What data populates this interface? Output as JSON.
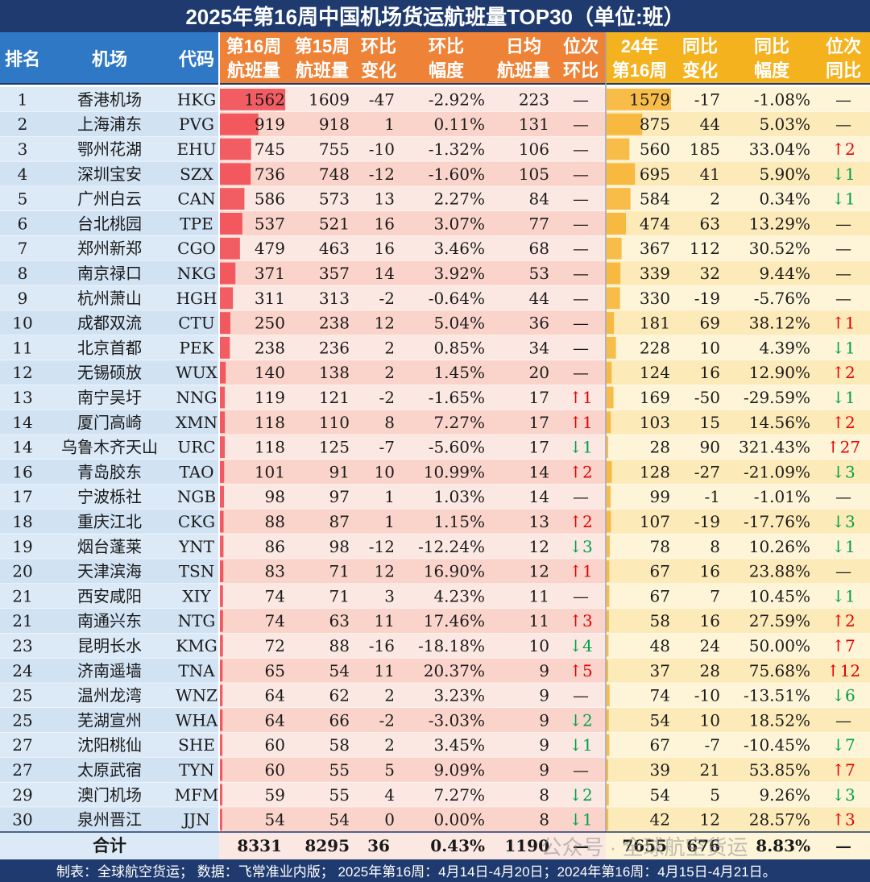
{
  "title": "2025年第16周中国机场货运航班量TOP30（单位:班）",
  "footer": "制表：全球航空货运；  数据：飞常准业内版；  2025年第16周：4月14日-4月20日；2024年第16周：4月15日-4月21日。",
  "watermark": "公众号 · 全球航空货运",
  "colors": {
    "title_bg": "#1f3a6e",
    "header_blue": "#2e78c6",
    "header_orange": "#ee8236",
    "header_yellow": "#f5b21f",
    "row_blue_light": "#dceaf7",
    "row_blue_dark": "#d1e2f3",
    "row_pink_light": "#fce8e2",
    "row_pink_dark": "#fad4cb",
    "row_yellow_light": "#fef5d8",
    "row_yellow_dark": "#fdeab9",
    "bar_red": "#ef2f3a",
    "bar_orange": "#f5a81a",
    "up_red": "#e60000",
    "down_green": "#00a04a"
  },
  "headers": [
    [
      "排名"
    ],
    [
      "机场"
    ],
    [
      "代码"
    ],
    [
      "第16周",
      "航班量"
    ],
    [
      "第15周",
      "航班量"
    ],
    [
      "环比",
      "变化"
    ],
    [
      "环比",
      "幅度"
    ],
    [
      "日均",
      "航班量"
    ],
    [
      "位次",
      "环比"
    ],
    [
      "24年",
      "第16周"
    ],
    [
      "同比",
      "变化"
    ],
    [
      "同比",
      "幅度"
    ],
    [
      "位次",
      "同比"
    ]
  ],
  "rows": [
    [
      "1",
      "香港机场",
      "HKG",
      "1562",
      "1609",
      "-47",
      "-2.92%",
      "223",
      "—",
      "1579",
      "-17",
      "-1.08%",
      "—"
    ],
    [
      "2",
      "上海浦东",
      "PVG",
      "919",
      "918",
      "1",
      "0.11%",
      "131",
      "—",
      "875",
      "44",
      "5.03%",
      "—"
    ],
    [
      "3",
      "鄂州花湖",
      "EHU",
      "745",
      "755",
      "-10",
      "-1.32%",
      "106",
      "—",
      "560",
      "185",
      "33.04%",
      "↑2"
    ],
    [
      "4",
      "深圳宝安",
      "SZX",
      "736",
      "748",
      "-12",
      "-1.60%",
      "105",
      "—",
      "695",
      "41",
      "5.90%",
      "↓1"
    ],
    [
      "5",
      "广州白云",
      "CAN",
      "586",
      "573",
      "13",
      "2.27%",
      "84",
      "—",
      "584",
      "2",
      "0.34%",
      "↓1"
    ],
    [
      "6",
      "台北桃园",
      "TPE",
      "537",
      "521",
      "16",
      "3.07%",
      "77",
      "—",
      "474",
      "63",
      "13.29%",
      "—"
    ],
    [
      "7",
      "郑州新郑",
      "CGO",
      "479",
      "463",
      "16",
      "3.46%",
      "68",
      "—",
      "367",
      "112",
      "30.52%",
      "—"
    ],
    [
      "8",
      "南京禄口",
      "NKG",
      "371",
      "357",
      "14",
      "3.92%",
      "53",
      "—",
      "339",
      "32",
      "9.44%",
      "—"
    ],
    [
      "9",
      "杭州萧山",
      "HGH",
      "311",
      "313",
      "-2",
      "-0.64%",
      "44",
      "—",
      "330",
      "-19",
      "-5.76%",
      "—"
    ],
    [
      "10",
      "成都双流",
      "CTU",
      "250",
      "238",
      "12",
      "5.04%",
      "36",
      "—",
      "181",
      "69",
      "38.12%",
      "↑1"
    ],
    [
      "11",
      "北京首都",
      "PEK",
      "238",
      "236",
      "2",
      "0.85%",
      "34",
      "—",
      "228",
      "10",
      "4.39%",
      "↓1"
    ],
    [
      "12",
      "无锡硕放",
      "WUX",
      "140",
      "138",
      "2",
      "1.45%",
      "20",
      "—",
      "124",
      "16",
      "12.90%",
      "↑2"
    ],
    [
      "13",
      "南宁吴圩",
      "NNG",
      "119",
      "121",
      "-2",
      "-1.65%",
      "17",
      "↑1",
      "169",
      "-50",
      "-29.59%",
      "↓1"
    ],
    [
      "14",
      "厦门高崎",
      "XMN",
      "118",
      "110",
      "8",
      "7.27%",
      "17",
      "↑1",
      "103",
      "15",
      "14.56%",
      "↑2"
    ],
    [
      "14",
      "乌鲁木齐天山",
      "URC",
      "118",
      "125",
      "-7",
      "-5.60%",
      "17",
      "↓1",
      "28",
      "90",
      "321.43%",
      "↑27"
    ],
    [
      "16",
      "青岛胶东",
      "TAO",
      "101",
      "91",
      "10",
      "10.99%",
      "14",
      "↑2",
      "128",
      "-27",
      "-21.09%",
      "↓3"
    ],
    [
      "17",
      "宁波栎社",
      "NGB",
      "98",
      "97",
      "1",
      "1.03%",
      "14",
      "—",
      "99",
      "-1",
      "-1.01%",
      "—"
    ],
    [
      "18",
      "重庆江北",
      "CKG",
      "88",
      "87",
      "1",
      "1.15%",
      "13",
      "↑2",
      "107",
      "-19",
      "-17.76%",
      "↓3"
    ],
    [
      "19",
      "烟台蓬莱",
      "YNT",
      "86",
      "98",
      "-12",
      "-12.24%",
      "12",
      "↓3",
      "78",
      "8",
      "10.26%",
      "↓1"
    ],
    [
      "20",
      "天津滨海",
      "TSN",
      "83",
      "71",
      "12",
      "16.90%",
      "12",
      "↑1",
      "67",
      "16",
      "23.88%",
      "—"
    ],
    [
      "21",
      "西安咸阳",
      "XIY",
      "74",
      "71",
      "3",
      "4.23%",
      "11",
      "—",
      "67",
      "7",
      "10.45%",
      "↓1"
    ],
    [
      "21",
      "南通兴东",
      "NTG",
      "74",
      "63",
      "11",
      "17.46%",
      "11",
      "↑3",
      "58",
      "16",
      "27.59%",
      "↑2"
    ],
    [
      "23",
      "昆明长水",
      "KMG",
      "72",
      "88",
      "-16",
      "-18.18%",
      "10",
      "↓4",
      "48",
      "24",
      "50.00%",
      "↑7"
    ],
    [
      "24",
      "济南遥墙",
      "TNA",
      "65",
      "54",
      "11",
      "20.37%",
      "9",
      "↑5",
      "37",
      "28",
      "75.68%",
      "↑12"
    ],
    [
      "25",
      "温州龙湾",
      "WNZ",
      "64",
      "62",
      "2",
      "3.23%",
      "9",
      "—",
      "74",
      "-10",
      "-13.51%",
      "↓6"
    ],
    [
      "25",
      "芜湖宣州",
      "WHA",
      "64",
      "66",
      "-2",
      "-3.03%",
      "9",
      "↓2",
      "54",
      "10",
      "18.52%",
      "—"
    ],
    [
      "27",
      "沈阳桃仙",
      "SHE",
      "60",
      "58",
      "2",
      "3.45%",
      "9",
      "↓1",
      "67",
      "-7",
      "-10.45%",
      "↓7"
    ],
    [
      "27",
      "太原武宿",
      "TYN",
      "60",
      "55",
      "5",
      "9.09%",
      "9",
      "—",
      "39",
      "21",
      "53.85%",
      "↑7"
    ],
    [
      "29",
      "澳门机场",
      "MFM",
      "59",
      "55",
      "4",
      "7.27%",
      "8",
      "↓2",
      "54",
      "5",
      "9.26%",
      "↓3"
    ],
    [
      "30",
      "泉州晋江",
      "JJN",
      "54",
      "54",
      "0",
      "0.00%",
      "8",
      "↓1",
      "42",
      "12",
      "28.57%",
      "↑3"
    ]
  ],
  "total": [
    "合计",
    "8331",
    "8295",
    "36",
    "0.43%",
    "1190",
    "—",
    "7655",
    "676",
    "8.83%",
    "—"
  ],
  "chart_data": {
    "type": "table",
    "title": "2025年第16周中国机场货运航班量TOP30（单位:班）",
    "data_bars": [
      {
        "column": "第16周航班量",
        "color": "#ef2f3a"
      },
      {
        "column": "24年第16周",
        "color": "#f5a81a"
      }
    ]
  }
}
